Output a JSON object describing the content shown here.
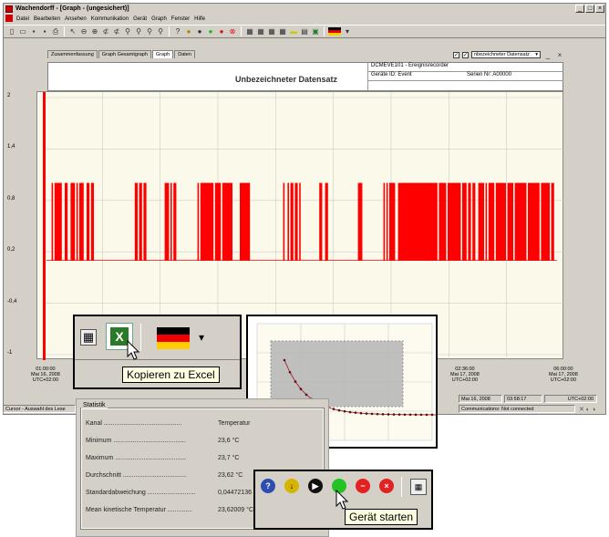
{
  "window": {
    "title": "Wachendorff - [Graph - (ungesichert)]"
  },
  "menu": [
    "Datei",
    "Bearbeiten",
    "Ansehen",
    "Kommunikation",
    "Gerät",
    "Graph",
    "Fenster",
    "Hilfe"
  ],
  "tabs": [
    "Zusammenfassung",
    "Graph Gesamtgraph",
    "Graph",
    "Daten"
  ],
  "dataset_select": {
    "checked": true,
    "value": "nbezeichneter Datensatz"
  },
  "graph_header": {
    "title": "Unbezeichneter Datensatz",
    "device": "DCMEVE101 - Ereignisrecorder",
    "device_id": "Geräte ID: Event",
    "serial": "Serien Nr: A00000"
  },
  "chart_data": {
    "type": "line",
    "yticks": [
      "2",
      "1,4",
      "0,8",
      "0,2",
      "-0,4",
      "-1"
    ],
    "ylim": [
      -1,
      2
    ],
    "xticks": [
      {
        "time": "01:00:00",
        "date": "Mai 16, 2008",
        "tz": "UTC+02:00"
      },
      {
        "time": "02:36:00",
        "date": "Mai 17, 2008",
        "tz": "UTC+02:00"
      },
      {
        "time": "06:00:00",
        "date": "Mai 17, 2008",
        "tz": "UTC+02:00"
      }
    ],
    "series_color": "#ff0000",
    "low_level": 0.1,
    "high_level": 1.0
  },
  "statusbar": {
    "left": "Cursor - Auswahl des Lese",
    "date": "Mai 16, 2008",
    "time": "03:58:17",
    "tz": "UTC+02:00",
    "comm": "Communications: Not connected"
  },
  "statistics": {
    "legend": "Statistik",
    "rows": [
      {
        "label": "Kanal",
        "value": "Temperatur"
      },
      {
        "label": "Minimum",
        "value": "23,6 °C"
      },
      {
        "label": "Maximum",
        "value": "23,7 °C"
      },
      {
        "label": "Durchschnitt",
        "value": "23,62 °C"
      },
      {
        "label": "Standardabweichung",
        "value": "0,04472136"
      },
      {
        "label": "Mean kinetische Temperatur",
        "value": "23,62009 °C"
      }
    ]
  },
  "tooltips": {
    "excel": "Kopieren zu Excel",
    "start": "Gerät starten"
  }
}
